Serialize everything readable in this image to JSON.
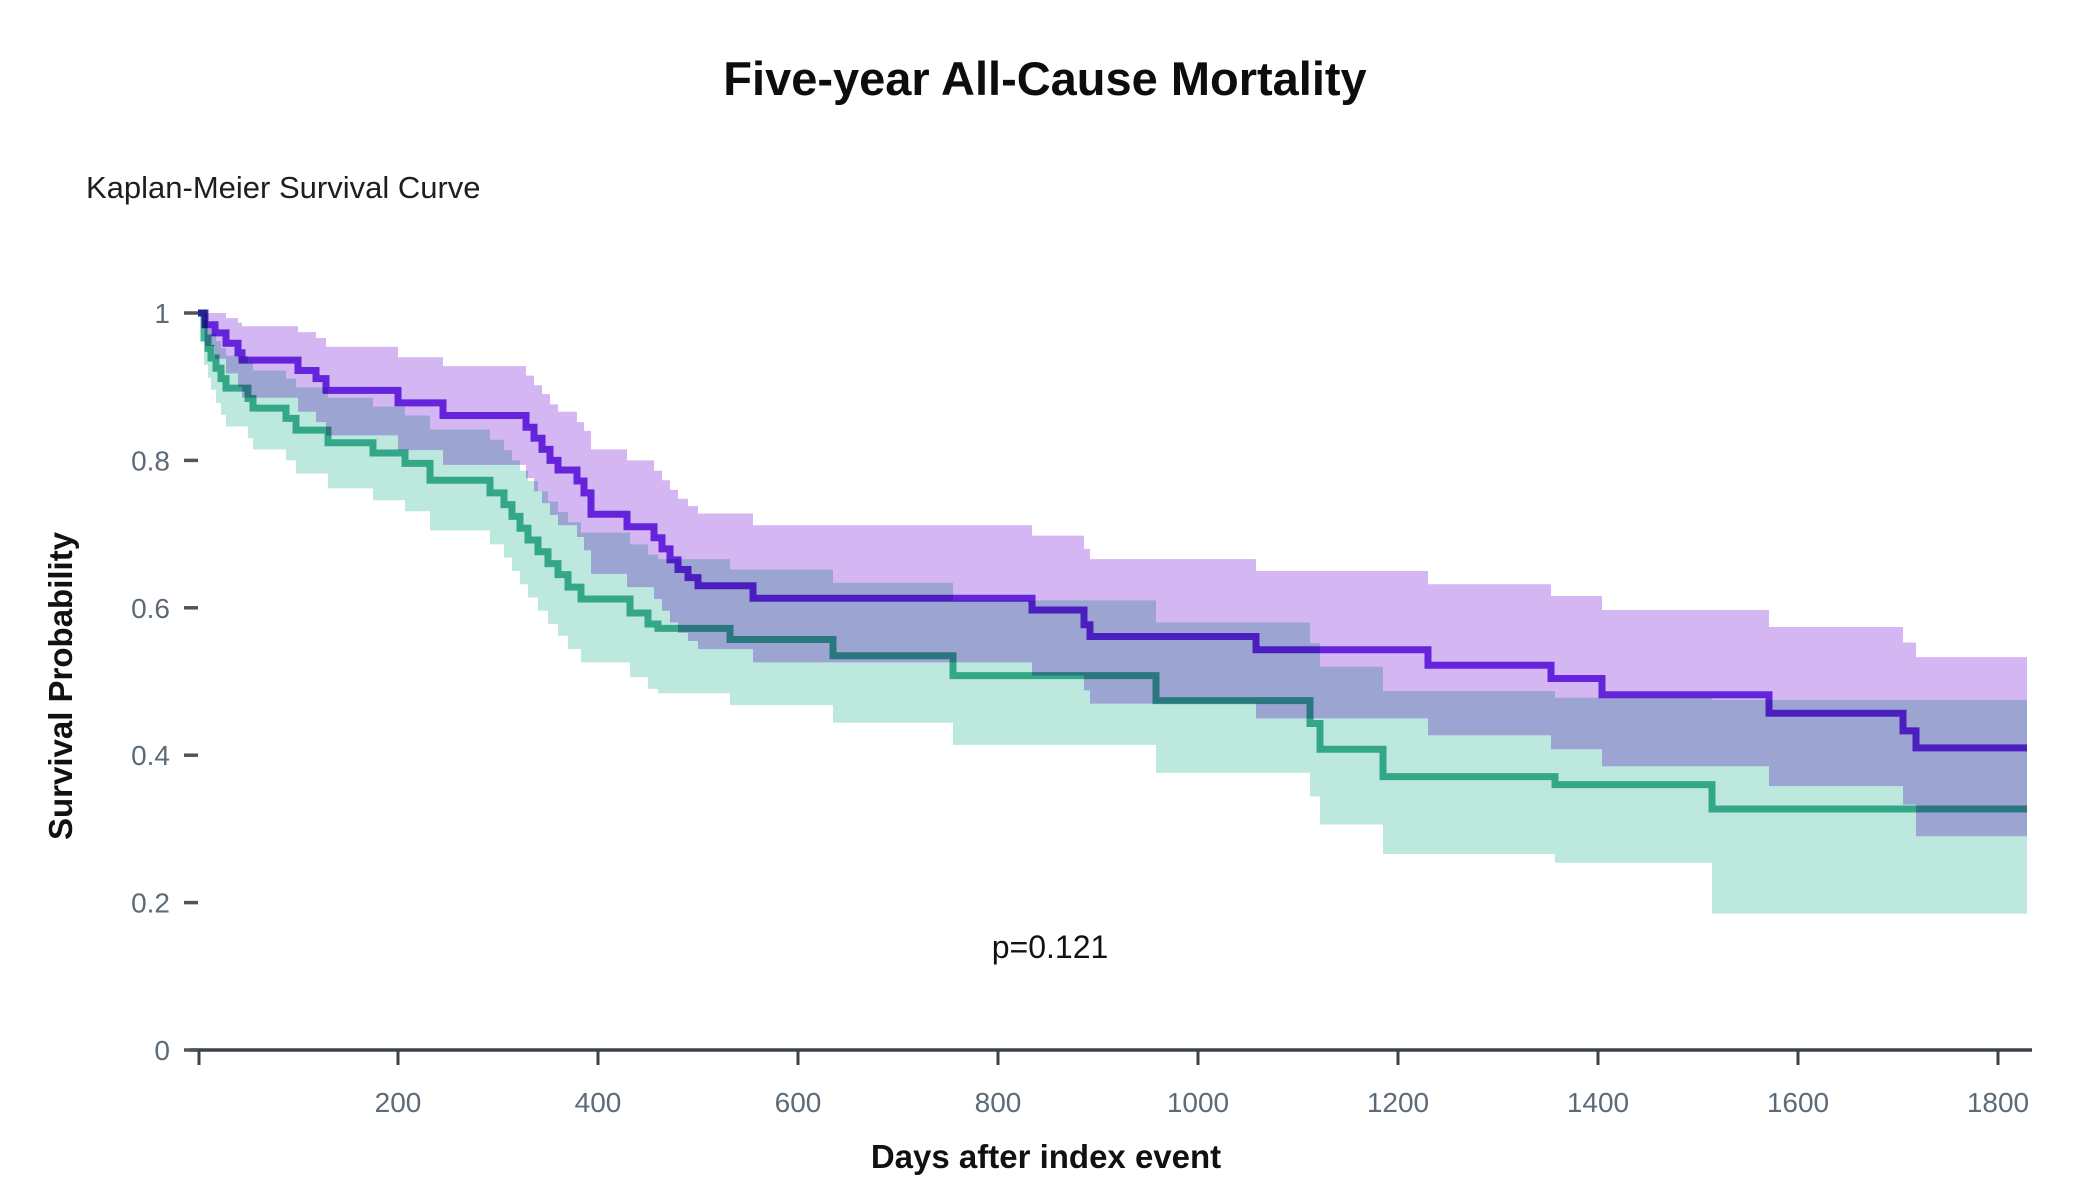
{
  "title": "Five-year All-Cause Mortality",
  "subtitle": "Kaplan-Meier Survival Curve",
  "annotation": {
    "p_value": "p=0.121"
  },
  "axes": {
    "x": {
      "label": "Days after index event",
      "tick_labels": [
        "200",
        "400",
        "600",
        "800",
        "1000",
        "1200",
        "1400",
        "1600",
        "1800"
      ]
    },
    "y": {
      "label": "Survival Probability",
      "tick_labels": [
        "1",
        "0.8",
        "0.6",
        "0.4",
        "0.2",
        "0"
      ]
    }
  },
  "colors": {
    "background": "#ffffff",
    "axis_line": "#3b424a",
    "tick_text": "#5d6a78",
    "purple_line": "#7a30e8",
    "purple_band": "#d4b6f2",
    "teal_line": "#46b89c",
    "teal_band": "#bce8de",
    "overlap_band_appearance": "#9db5de"
  },
  "chart_data": {
    "type": "line",
    "subtype": "kaplan-meier-step",
    "title": "Five-year All-Cause Mortality",
    "xlabel": "Days after index event",
    "ylabel": "Survival Probability",
    "p_value": "p=0.121",
    "xlim": [
      0,
      1830
    ],
    "ylim": [
      0,
      1
    ],
    "x_ticks": [
      200,
      400,
      600,
      800,
      1000,
      1200,
      1400,
      1600,
      1800
    ],
    "x_minor_tick": 1,
    "y_ticks": [
      {
        "v": 1,
        "label": "1"
      },
      {
        "v": 0.8,
        "label": "0.8"
      },
      {
        "v": 0.6,
        "label": "0.6"
      },
      {
        "v": 0.4,
        "label": "0.4"
      },
      {
        "v": 0.2,
        "label": "0.2"
      },
      {
        "v": 0,
        "label": "0"
      }
    ],
    "grid": false,
    "legend": "none",
    "series": [
      {
        "id": "group-purple",
        "line_color": "#7a30e8",
        "band_color": "#d4b6f2",
        "point_format": [
          "days",
          "survival",
          "ci_lower",
          "ci_upper"
        ],
        "points": [
          [
            0,
            1.0,
            1.0,
            1.0
          ],
          [
            7,
            0.984,
            0.955,
            1.0
          ],
          [
            17,
            0.973,
            0.938,
            1.0
          ],
          [
            28,
            0.959,
            0.918,
            0.993
          ],
          [
            40,
            0.946,
            0.9,
            0.987
          ],
          [
            44,
            0.936,
            0.885,
            0.982
          ],
          [
            100,
            0.922,
            0.866,
            0.974
          ],
          [
            118,
            0.911,
            0.852,
            0.966
          ],
          [
            128,
            0.895,
            0.834,
            0.954
          ],
          [
            200,
            0.878,
            0.814,
            0.94
          ],
          [
            245,
            0.861,
            0.794,
            0.928
          ],
          [
            328,
            0.845,
            0.776,
            0.915
          ],
          [
            336,
            0.83,
            0.758,
            0.902
          ],
          [
            344,
            0.815,
            0.742,
            0.89
          ],
          [
            352,
            0.8,
            0.726,
            0.876
          ],
          [
            360,
            0.787,
            0.712,
            0.866
          ],
          [
            379,
            0.772,
            0.696,
            0.852
          ],
          [
            386,
            0.756,
            0.678,
            0.84
          ],
          [
            393,
            0.727,
            0.646,
            0.815
          ],
          [
            429,
            0.71,
            0.628,
            0.8
          ],
          [
            456,
            0.695,
            0.612,
            0.786
          ],
          [
            464,
            0.68,
            0.596,
            0.773
          ],
          [
            472,
            0.665,
            0.58,
            0.76
          ],
          [
            480,
            0.652,
            0.566,
            0.748
          ],
          [
            490,
            0.641,
            0.555,
            0.738
          ],
          [
            500,
            0.63,
            0.544,
            0.728
          ],
          [
            555,
            0.613,
            0.526,
            0.712
          ],
          [
            834,
            0.597,
            0.508,
            0.698
          ],
          [
            886,
            0.577,
            0.488,
            0.68
          ],
          [
            892,
            0.561,
            0.47,
            0.666
          ],
          [
            1058,
            0.543,
            0.45,
            0.65
          ],
          [
            1230,
            0.522,
            0.427,
            0.632
          ],
          [
            1353,
            0.504,
            0.408,
            0.616
          ],
          [
            1404,
            0.482,
            0.385,
            0.597
          ],
          [
            1571,
            0.457,
            0.358,
            0.574
          ],
          [
            1705,
            0.433,
            0.333,
            0.553
          ],
          [
            1718,
            0.41,
            0.29,
            0.533
          ],
          [
            1829,
            0.41,
            0.29,
            0.533
          ]
        ]
      },
      {
        "id": "group-teal",
        "line_color": "#46b89c",
        "band_color": "#bce8de",
        "point_format": [
          "days",
          "survival",
          "ci_lower",
          "ci_upper"
        ],
        "points": [
          [
            0,
            1.0,
            1.0,
            1.0
          ],
          [
            6,
            0.966,
            0.93,
            0.99
          ],
          [
            10,
            0.952,
            0.912,
            0.98
          ],
          [
            13,
            0.939,
            0.896,
            0.972
          ],
          [
            18,
            0.925,
            0.878,
            0.962
          ],
          [
            23,
            0.911,
            0.862,
            0.952
          ],
          [
            28,
            0.898,
            0.846,
            0.942
          ],
          [
            50,
            0.884,
            0.83,
            0.932
          ],
          [
            55,
            0.871,
            0.815,
            0.922
          ],
          [
            88,
            0.857,
            0.8,
            0.911
          ],
          [
            98,
            0.841,
            0.782,
            0.899
          ],
          [
            130,
            0.824,
            0.762,
            0.885
          ],
          [
            175,
            0.81,
            0.746,
            0.873
          ],
          [
            207,
            0.796,
            0.731,
            0.861
          ],
          [
            232,
            0.773,
            0.705,
            0.842
          ],
          [
            292,
            0.756,
            0.686,
            0.828
          ],
          [
            306,
            0.74,
            0.668,
            0.814
          ],
          [
            314,
            0.724,
            0.65,
            0.8
          ],
          [
            322,
            0.708,
            0.632,
            0.786
          ],
          [
            330,
            0.692,
            0.614,
            0.772
          ],
          [
            340,
            0.676,
            0.596,
            0.758
          ],
          [
            350,
            0.66,
            0.578,
            0.744
          ],
          [
            360,
            0.645,
            0.562,
            0.73
          ],
          [
            370,
            0.628,
            0.544,
            0.716
          ],
          [
            383,
            0.612,
            0.526,
            0.702
          ],
          [
            432,
            0.593,
            0.506,
            0.686
          ],
          [
            450,
            0.578,
            0.49,
            0.672
          ],
          [
            460,
            0.572,
            0.484,
            0.666
          ],
          [
            532,
            0.557,
            0.468,
            0.652
          ],
          [
            635,
            0.535,
            0.444,
            0.634
          ],
          [
            755,
            0.508,
            0.414,
            0.61
          ],
          [
            958,
            0.474,
            0.376,
            0.58
          ],
          [
            1112,
            0.443,
            0.344,
            0.552
          ],
          [
            1122,
            0.408,
            0.306,
            0.52
          ],
          [
            1185,
            0.371,
            0.266,
            0.487
          ],
          [
            1357,
            0.36,
            0.254,
            0.478
          ],
          [
            1514,
            0.327,
            0.185,
            0.475
          ],
          [
            1829,
            0.327,
            0.185,
            0.475
          ]
        ]
      }
    ]
  }
}
